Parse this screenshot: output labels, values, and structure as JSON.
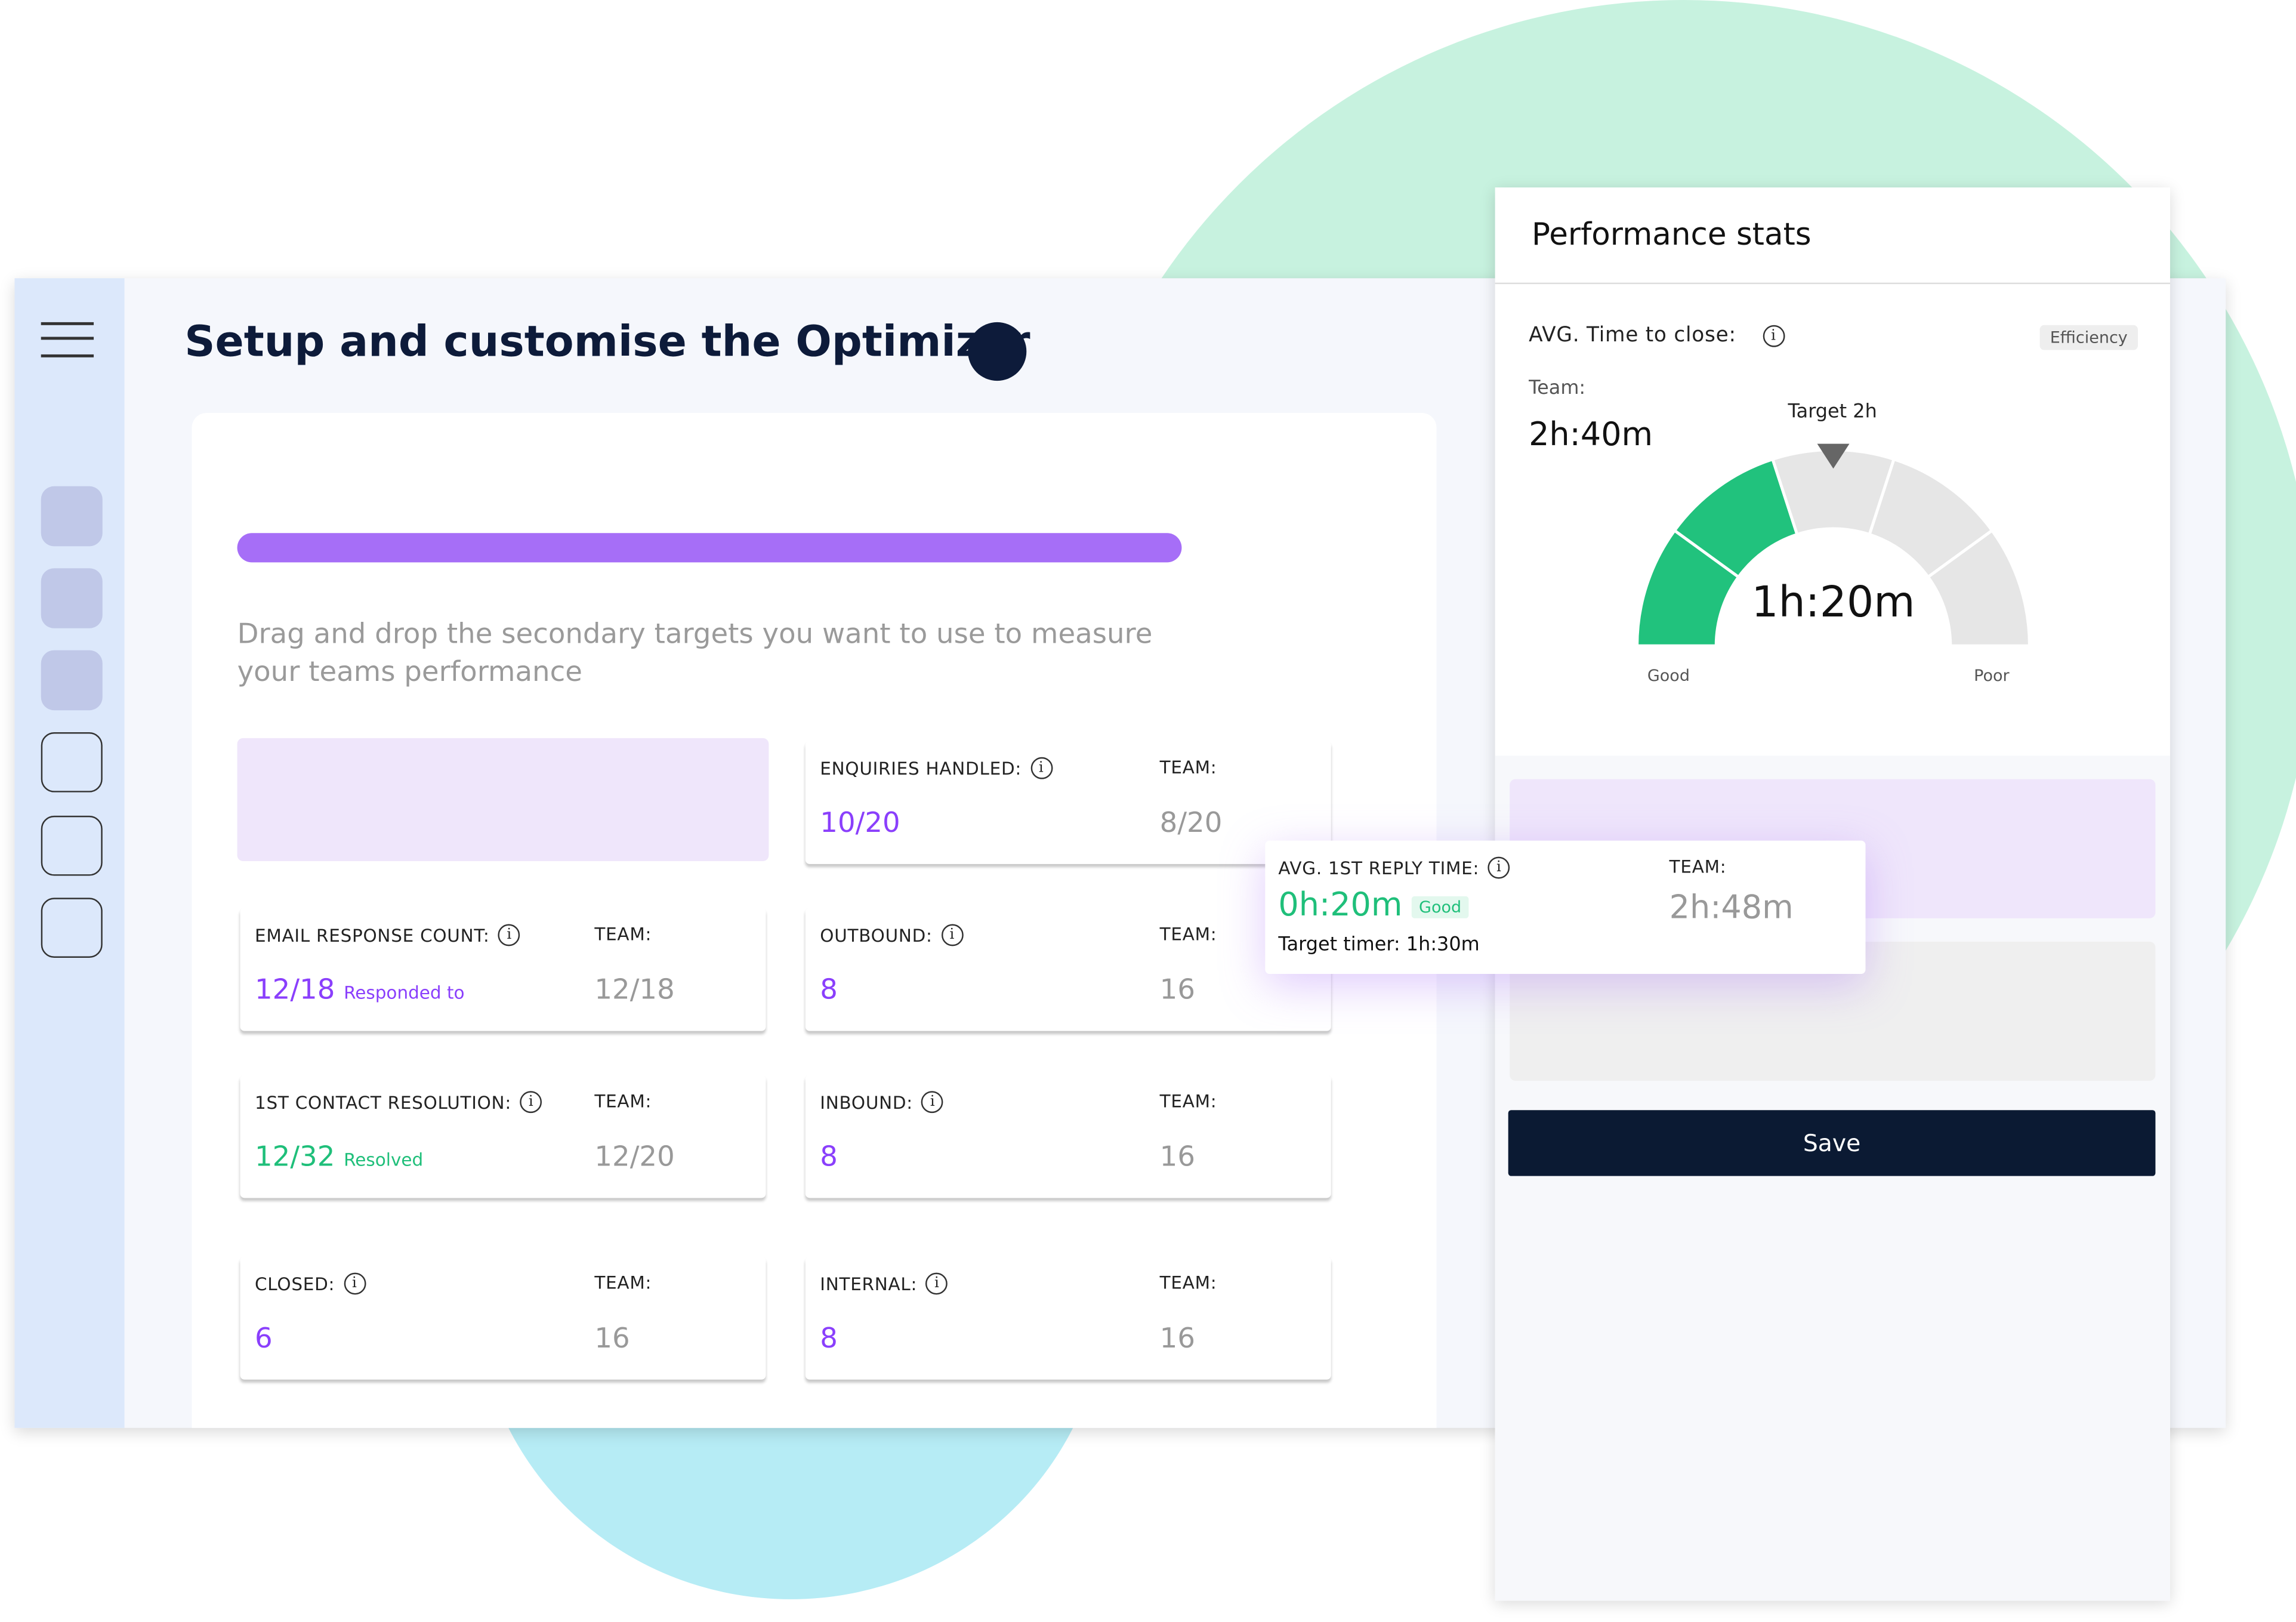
{
  "header": {
    "title": "Setup and customise the Optimizer"
  },
  "instructions": "Drag and drop the secondary targets you want to use to measure your teams performance",
  "cards": [
    {
      "label": "ENQUIRIES HANDLED:",
      "value": "10/20",
      "team_label": "TEAM:",
      "team_value": "8/20",
      "color": "#8a3ffc",
      "col": 1,
      "row": 0
    },
    {
      "label": "EMAIL RESPONSE COUNT:",
      "value": "12/18",
      "note": "Responded to",
      "team_label": "TEAM:",
      "team_value": "12/18",
      "color": "#8a3ffc",
      "col": 0,
      "row": 1
    },
    {
      "label": "OUTBOUND:",
      "value": "8",
      "team_label": "TEAM:",
      "team_value": "16",
      "color": "#8a3ffc",
      "col": 1,
      "row": 1
    },
    {
      "label": "1ST CONTACT RESOLUTION:",
      "value": "12/32",
      "note": "Resolved",
      "team_label": "TEAM:",
      "team_value": "12/20",
      "color": "#1fbf7a",
      "col": 0,
      "row": 2
    },
    {
      "label": "INBOUND:",
      "value": "8",
      "team_label": "TEAM:",
      "team_value": "16",
      "color": "#8a3ffc",
      "col": 1,
      "row": 2
    },
    {
      "label": "CLOSED:",
      "value": "6",
      "team_label": "TEAM:",
      "team_value": "16",
      "color": "#8a3ffc",
      "col": 0,
      "row": 3
    },
    {
      "label": "INTERNAL:",
      "value": "8",
      "team_label": "TEAM:",
      "team_value": "16",
      "color": "#8a3ffc",
      "col": 1,
      "row": 3
    }
  ],
  "tooltip": {
    "label": "AVG. 1ST REPLY TIME:",
    "value": "0h:20m",
    "badge": "Good",
    "target": "Target timer: 1h:30m",
    "team_label": "TEAM:",
    "team_value": "2h:48m"
  },
  "panel": {
    "title": "Performance stats",
    "metric": "AVG. Time to close:",
    "badge": "Efficiency",
    "team_label": "Team:",
    "team_value": "2h:40m",
    "target": "Target 2h",
    "gauge_value": "1h:20m",
    "low_label": "Good",
    "high_label": "Poor",
    "button": "Save"
  }
}
